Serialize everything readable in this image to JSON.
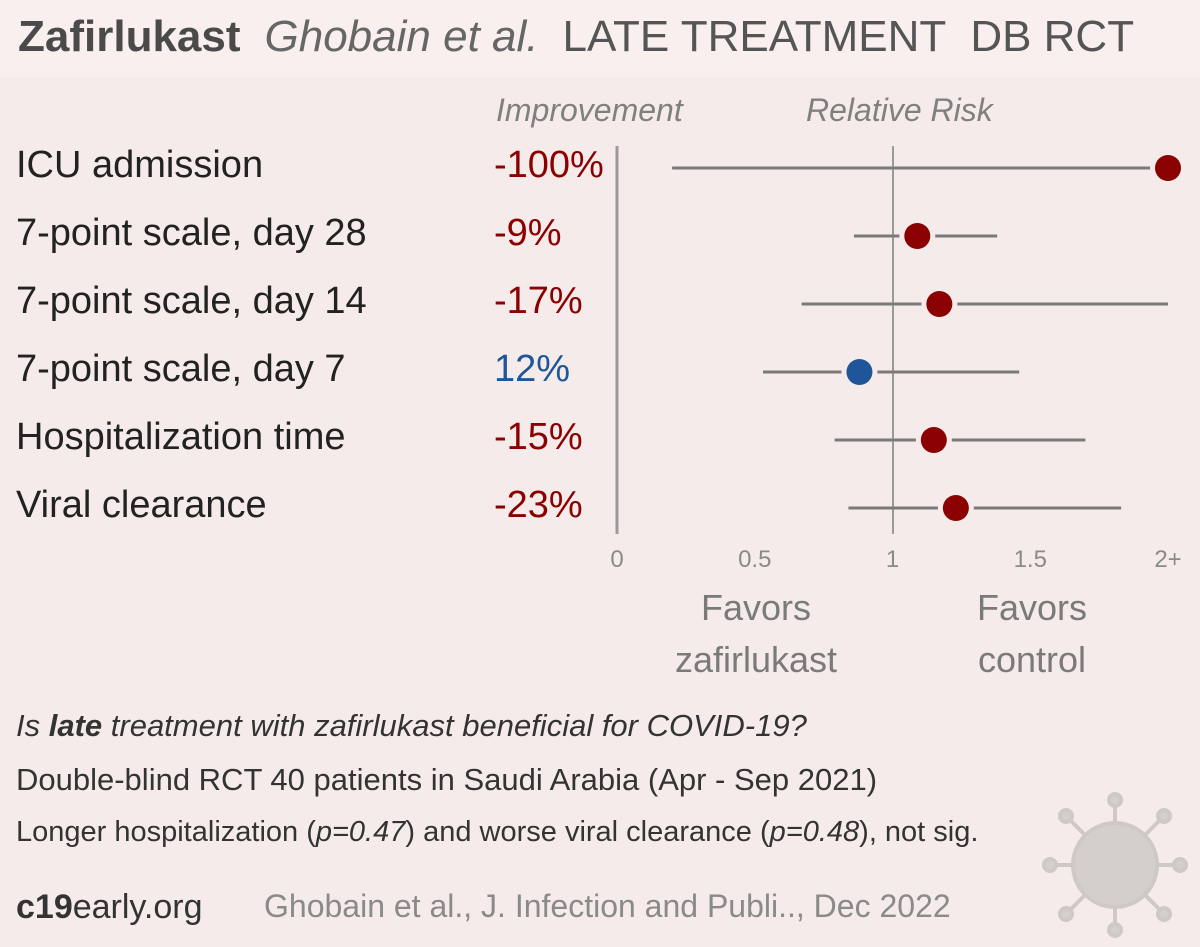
{
  "header": {
    "drug": "Zafirlukast",
    "author": "Ghobain et al.",
    "stage": "LATE TREATMENT",
    "design": "DB RCT"
  },
  "columns": {
    "improvement": "Improvement",
    "relative_risk": "Relative Risk"
  },
  "chart_data": {
    "type": "forest",
    "xlim": [
      0,
      2
    ],
    "xticks": [
      "0",
      "0.5",
      "1",
      "1.5",
      "2+"
    ],
    "reference_line": 1,
    "rows": [
      {
        "label": "ICU admission",
        "improvement": "-100%",
        "rr": 2.0,
        "lo": 0.2,
        "hi": 2.0,
        "color": "#8b0000"
      },
      {
        "label": "7-point scale, day 28",
        "improvement": "-9%",
        "rr": 1.09,
        "lo": 0.86,
        "hi": 1.38,
        "color": "#8b0000"
      },
      {
        "label": "7-point scale, day 14",
        "improvement": "-17%",
        "rr": 1.17,
        "lo": 0.67,
        "hi": 2.0,
        "color": "#8b0000"
      },
      {
        "label": "7-point scale, day 7",
        "improvement": "12%",
        "rr": 0.88,
        "lo": 0.53,
        "hi": 1.46,
        "color": "#1f5599"
      },
      {
        "label": "Hospitalization time",
        "improvement": "-15%",
        "rr": 1.15,
        "lo": 0.79,
        "hi": 1.7,
        "color": "#8b0000"
      },
      {
        "label": "Viral clearance",
        "improvement": "-23%",
        "rr": 1.23,
        "lo": 0.84,
        "hi": 1.83,
        "color": "#8b0000"
      }
    ]
  },
  "favors": {
    "left_line1": "Favors",
    "left_line2": "zafirlukast",
    "right_line1": "Favors",
    "right_line2": "control"
  },
  "summary": {
    "question_pre": "Is ",
    "question_bold": "late",
    "question_post": " treatment with zafirlukast beneficial for COVID-19?",
    "description": "Double-blind RCT 40 patients in Saudi Arabia (Apr - Sep 2021)",
    "result_a": "Longer hospitalization (",
    "result_p1": "p=0.47",
    "result_b": ") and worse viral clearance (",
    "result_p2": "p=0.48",
    "result_c": "), not sig."
  },
  "footer": {
    "site_bold": "c19",
    "site_rest": "early.org",
    "citation": "Ghobain et al., J. Infection and Publi.., Dec 2022"
  },
  "colors": {
    "harm": "#8b0000",
    "benefit": "#1f5599",
    "line": "#7a7a7a"
  }
}
